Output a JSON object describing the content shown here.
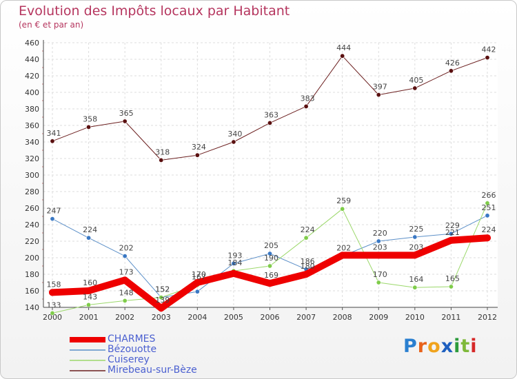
{
  "header": {
    "title": "Evolution des Impôts locaux par Habitant",
    "subtitle": "(en € et par an)"
  },
  "logo": {
    "text": "Proxiti",
    "letters": [
      "P",
      "r",
      "o",
      "x",
      "i",
      "t",
      "i"
    ],
    "colors": [
      "#2a7fd0",
      "#e8621a",
      "#f0a31c",
      "#1e5fbf",
      "#2c9b3c",
      "#7fb93a",
      "#d62828"
    ]
  },
  "chart_data": {
    "type": "line",
    "title": "Evolution des Impôts locaux par Habitant",
    "subtitle": "(en € et par an)",
    "xlabel": "",
    "ylabel": "",
    "categories": [
      "2000",
      "2001",
      "2002",
      "2003",
      "2004",
      "2005",
      "2006",
      "2007",
      "2008",
      "2009",
      "2010",
      "2011",
      "2012"
    ],
    "ylim": [
      140,
      460
    ],
    "yticks": [
      140,
      160,
      180,
      200,
      220,
      240,
      260,
      280,
      300,
      320,
      340,
      360,
      380,
      400,
      420,
      440,
      460
    ],
    "grid": true,
    "legend_position": "bottom-left",
    "series": [
      {
        "name": "Mirebeau-sur-Bèze",
        "color": "#6b1e1e",
        "marker": "#5a1010",
        "width": 1,
        "values": [
          341,
          358,
          365,
          318,
          324,
          340,
          363,
          383,
          444,
          397,
          405,
          426,
          442
        ],
        "labels": [
          "341",
          "358",
          "365",
          "318",
          "324",
          "340",
          "363",
          "383",
          "444",
          "397",
          "405",
          "426",
          "442"
        ]
      },
      {
        "name": "Bézouotte",
        "color": "#5b8fc8",
        "marker": "#3a78c4",
        "width": 1,
        "values": [
          247,
          224,
          202,
          152,
          159,
          193,
          205,
          186,
          202,
          220,
          225,
          229,
          251
        ],
        "labels": [
          "247",
          "224",
          "202",
          "152",
          "",
          "193",
          "205",
          "186",
          "202",
          "220",
          "225",
          "229",
          "251"
        ]
      },
      {
        "name": "Cuiserey",
        "color": "#9bd86a",
        "marker": "#7fcc4a",
        "width": 1,
        "values": [
          133,
          143,
          148,
          152,
          167,
          184,
          190,
          224,
          259,
          170,
          164,
          165,
          266
        ],
        "labels": [
          "133",
          "143",
          "148",
          "152",
          "167",
          "184",
          "190",
          "224",
          "259",
          "170",
          "164",
          "165",
          "266"
        ]
      },
      {
        "name": "CHARMES",
        "color": "#ee0000",
        "marker": "#ee0000",
        "width": 10,
        "values": [
          158,
          160,
          173,
          139,
          170,
          181,
          169,
          180,
          203,
          203,
          203,
          221,
          224
        ],
        "labels": [
          "158",
          "160",
          "173",
          "139",
          "170",
          "",
          "169",
          "180",
          "",
          "203",
          "203",
          "221",
          "224"
        ]
      }
    ]
  }
}
